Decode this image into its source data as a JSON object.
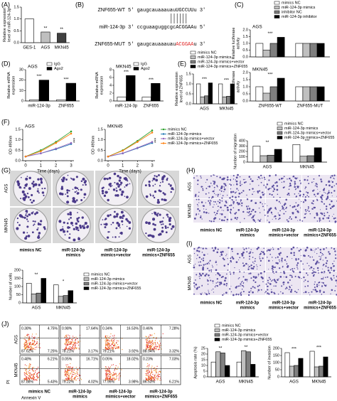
{
  "letters": [
    "(A)",
    "(B)",
    "(C)",
    "(D)",
    "(E)",
    "(F)",
    "(G)",
    "(H)",
    "(I)",
    "(J)"
  ],
  "sequences": [
    {
      "name": "ZNF655-WT",
      "parts": [
        {
          "text": "5' gaugcauaaauau",
          "color": "#000000"
        },
        {
          "text": "UGCCUU",
          "color": "#000000"
        },
        {
          "text": "u 3'",
          "color": "#000000"
        }
      ]
    },
    {
      "name": "miR-124-3p",
      "parts": [
        {
          "text": "3' ccguaaguggcgc",
          "color": "#000000"
        },
        {
          "text": "ACGGAA",
          "color": "#000000"
        },
        {
          "text": "u 5'",
          "color": "#000000"
        }
      ]
    },
    {
      "name": "ZNF655-MUT",
      "parts": [
        {
          "text": "5' gaugcauaaauau",
          "color": "#000000"
        },
        {
          "text": "ACGGAA",
          "color": "#e02020"
        },
        {
          "text": "u 3'",
          "color": "#000000"
        }
      ]
    }
  ],
  "images": [
    {
      "kind": "colony",
      "rows": [
        "AGS",
        "MKN45"
      ],
      "columns": [
        [
          "mimics NC"
        ],
        [
          "miR-124-3p",
          "mimics"
        ],
        [
          "miR-124-3p",
          "mimics+vector"
        ],
        [
          "miR-124-3p",
          "mimics+ZNF655"
        ]
      ]
    },
    {
      "kind": "cells",
      "rows": [
        "AGS",
        "MKN45"
      ],
      "columns": [
        [
          "mimics NC"
        ],
        [
          "miR-124-3p",
          "mimics"
        ],
        [
          "miR-124-3p",
          "mimics+vector"
        ],
        [
          "miR-124-3p",
          "mimics+ZNF655"
        ]
      ]
    },
    {
      "kind": "cells",
      "rows": [
        "AGS",
        "MKN45"
      ],
      "columns": [
        [
          "mimics NC"
        ],
        [
          "miR-124-3p",
          "mimics"
        ],
        [
          "miR-124-3p",
          "mimics+vector"
        ],
        [
          "miR-124-3p",
          "mimics+ZNF655"
        ]
      ]
    }
  ],
  "flow": {
    "rows": [
      "AGS",
      "MKN45"
    ],
    "columns": [
      [
        "mimics NC"
      ],
      [
        "miR-124-3p",
        "mimics"
      ],
      [
        "miR-124-3p",
        "mimics+vector"
      ],
      [
        "miR-124-3p",
        "mimics+ZNF655"
      ]
    ],
    "xlabel": "Annexin V",
    "ylabel": "PI",
    "quadrants": [
      [
        [
          "0.38%",
          "4.75%",
          "87.62%",
          "7.25%"
        ],
        [
          "0.98%",
          "17.64%",
          "78.21%",
          "3.17%"
        ],
        [
          "0.34%",
          "16.53%",
          "79.21%",
          "3.92%"
        ],
        [
          "0.46%",
          "7.28%",
          "88.94%",
          "3.32%"
        ]
      ],
      [
        [
          "0.48%",
          "6.21%",
          "87.88%",
          "5.43%"
        ],
        [
          "0.05%",
          "16.71%",
          "79.22%",
          "4.02%"
        ],
        [
          "0.05%",
          "18.02%",
          "77.95%",
          "3.98%"
        ],
        [
          "0.23%",
          "7.03%",
          "86.53%",
          "6.21%"
        ]
      ]
    ]
  },
  "chart_data": [
    {
      "type": "bar",
      "ylabel": [
        "Relative expression",
        "level of miR-124-3p"
      ],
      "categories": [
        "GES-1",
        "AGS",
        "MKN45"
      ],
      "values": [
        1,
        0.45,
        0.4
      ],
      "colors": [
        "#ffffff",
        "#bfbfbf",
        "#404040"
      ],
      "stars": [
        null,
        "**",
        "**"
      ],
      "ylim": [
        0,
        1.5
      ],
      "yticks": [
        {
          "value": 0,
          "label": "0.0"
        },
        0.5,
        {
          "value": 1,
          "label": "1.0"
        },
        1.5
      ]
    },
    {
      "type": "bar",
      "title": "AGS",
      "ylabel": [
        "Relative luciferase",
        "activity"
      ],
      "legend": true,
      "categories": [
        null,
        null
      ],
      "series": [
        {
          "name": "mimics NC",
          "color": "#ffffff",
          "values": [
            1,
            1
          ]
        },
        {
          "name": "miR-124-3p mimics",
          "color": "#bfbfbf",
          "values": [
            0.5,
            1
          ]
        },
        {
          "name": "inhibitor NC",
          "color": "#7f7f7f",
          "values": [
            1,
            1
          ]
        },
        {
          "name": "miR-124-3p inhibitor",
          "color": "#000000",
          "values": [
            1.45,
            1
          ]
        }
      ],
      "stars": [
        "***",
        null
      ],
      "ylim": [
        0,
        2
      ],
      "yticks": [
        {
          "value": 0,
          "label": "0.0"
        },
        0.5,
        {
          "value": 1,
          "label": "1.0"
        },
        1.5,
        {
          "value": 2,
          "label": "2.0"
        }
      ]
    },
    {
      "type": "bar",
      "title": "MKN45",
      "ylabel": [
        "Relative luciferase",
        "activity"
      ],
      "categories": [
        "ZNF655-WT",
        "ZNF655-MUT"
      ],
      "series": [
        {
          "color": "#ffffff",
          "values": [
            1,
            1
          ]
        },
        {
          "color": "#bfbfbf",
          "values": [
            0.55,
            1
          ]
        },
        {
          "color": "#7f7f7f",
          "values": [
            1,
            1
          ]
        },
        {
          "color": "#000000",
          "values": [
            1.6,
            1
          ]
        }
      ],
      "stars": [
        "***",
        null
      ],
      "ylim": [
        0,
        2
      ],
      "yticks": [
        {
          "value": 0,
          "label": "0.0"
        },
        0.5,
        {
          "value": 1,
          "label": "1.0"
        },
        1.5,
        {
          "value": 2,
          "label": "2.0"
        }
      ]
    },
    {
      "type": "bar",
      "title": "AGS",
      "ylabel": [
        "Relative mRNA",
        "expression"
      ],
      "legend": true,
      "categories": [
        "miR-124-3p",
        "ZNF655"
      ],
      "series": [
        {
          "name": "IgG",
          "color": "#ffffff",
          "values": [
            1,
            1
          ]
        },
        {
          "name": "Ago2",
          "color": "#000000",
          "values": [
            20,
            17
          ]
        }
      ],
      "stars": [
        "***",
        "***"
      ],
      "ylim": [
        0,
        30
      ],
      "yticks": [
        0,
        10,
        20,
        30
      ]
    },
    {
      "type": "bar",
      "title": "MKN45",
      "ylabel": [
        "Relative mRNA",
        "expression"
      ],
      "legend": true,
      "categories": [
        "miR-124-3p",
        "ZNF655"
      ],
      "series": [
        {
          "name": "IgG",
          "color": "#ffffff",
          "values": [
            1,
            1
          ]
        },
        {
          "name": "Ago2",
          "color": "#000000",
          "values": [
            6.5,
            4.5
          ]
        }
      ],
      "stars": [
        "***",
        "***"
      ],
      "ylim": [
        0,
        8
      ],
      "yticks": [
        0,
        2,
        4,
        6,
        8
      ]
    },
    {
      "type": "bar",
      "ylabel": [
        "Relative expression",
        "level of ZNF655"
      ],
      "legend": true,
      "categories": [
        "AGS",
        "MKN45"
      ],
      "series": [
        {
          "name": "mimics NC",
          "color": "#ffffff",
          "values": [
            1,
            1
          ]
        },
        {
          "name": "miR-124-3p mimics",
          "color": "#bfbfbf",
          "values": [
            0.35,
            0.35
          ]
        },
        {
          "name": "miR-124-3p mimics+vector",
          "color": "#7f7f7f",
          "values": [
            0.4,
            0.38
          ]
        },
        {
          "name": "miR-124-3p mimics+ZNF655",
          "color": "#000000",
          "values": [
            1.05,
            1
          ]
        }
      ],
      "stars": [
        "***",
        "***"
      ],
      "ylim": [
        0,
        1.5
      ],
      "yticks": [
        {
          "value": 0,
          "label": "0.0"
        },
        0.5,
        {
          "value": 1,
          "label": "1.0"
        },
        1.5
      ]
    },
    {
      "type": "line",
      "title": "AGS",
      "ylabel": [
        "OD 490nm"
      ],
      "xlabel": "Time (days)",
      "x": [
        0,
        1,
        2,
        3
      ],
      "xlim": [
        0,
        3
      ],
      "xticks": [
        0,
        1,
        2,
        3
      ],
      "series": [
        {
          "name": "mimics NC",
          "color": "#2ca02c",
          "values": [
            0.2,
            0.5,
            0.9,
            1.4
          ]
        },
        {
          "name": "miR-124-3p mimics",
          "color": "#1f77b4",
          "values": [
            0.2,
            0.35,
            0.55,
            0.8
          ]
        },
        {
          "name": "miR-124-3p mimics+vector",
          "color": "#9467bd",
          "values": [
            0.2,
            0.35,
            0.58,
            0.85
          ]
        },
        {
          "name": "miR-124-3p mimics+ZNF655",
          "color": "#ff7f0e",
          "values": [
            0.2,
            0.45,
            0.85,
            1.3
          ]
        }
      ],
      "stars": [
        "***"
      ],
      "ylim": [
        0,
        1.5
      ],
      "yticks": [
        {
          "value": 0,
          "label": "0.0"
        },
        0.5,
        {
          "value": 1,
          "label": "1.0"
        },
        1.5
      ]
    },
    {
      "type": "line",
      "title": "MKN45",
      "ylabel": [
        "OD 490nm"
      ],
      "xlabel": "Time (days)",
      "legend": true,
      "x": [
        0,
        1,
        2,
        3
      ],
      "xlim": [
        0,
        3
      ],
      "xticks": [
        0,
        1,
        2,
        3
      ],
      "series": [
        {
          "name": "mimics NC",
          "color": "#2ca02c",
          "values": [
            0.2,
            0.5,
            0.95,
            1.45
          ]
        },
        {
          "name": "miR-124-3p mimics",
          "color": "#1f77b4",
          "values": [
            0.2,
            0.35,
            0.6,
            0.85
          ]
        },
        {
          "name": "miR-124-3p mimics+vector",
          "color": "#9467bd",
          "values": [
            0.2,
            0.36,
            0.62,
            0.9
          ]
        },
        {
          "name": "miR-124-3p mimics+ZNF655",
          "color": "#ff7f0e",
          "values": [
            0.2,
            0.48,
            0.9,
            1.35
          ]
        }
      ],
      "stars": [
        "***"
      ],
      "ylim": [
        0,
        1.5
      ],
      "yticks": [
        {
          "value": 0,
          "label": "0.0"
        },
        0.5,
        {
          "value": 1,
          "label": "1.0"
        },
        1.5
      ]
    },
    {
      "type": "bar",
      "ylabel": [
        "Number of migration"
      ],
      "legend": true,
      "categories": [
        "AGS",
        "MKN45"
      ],
      "series": [
        {
          "name": "mimics NC",
          "color": "#ffffff",
          "values": [
            300,
            330
          ]
        },
        {
          "name": "miR-124-3p mimics",
          "color": "#bfbfbf",
          "values": [
            120,
            110
          ]
        },
        {
          "name": "miR-124-3p mimics+vector",
          "color": "#7f7f7f",
          "values": [
            130,
            120
          ]
        },
        {
          "name": "miR-124-3p mimics+ZNF655",
          "color": "#000000",
          "values": [
            240,
            270
          ]
        }
      ],
      "stars": [
        "**",
        "***"
      ],
      "ylim": [
        0,
        400
      ],
      "yticks": [
        0,
        100,
        200,
        300,
        400
      ]
    },
    {
      "type": "bar",
      "ylabel": [
        "Number of cells"
      ],
      "legend": true,
      "categories": [
        "AGS",
        "MKN45"
      ],
      "series": [
        {
          "name": "mimics NC",
          "color": "#ffffff",
          "values": [
            120,
            110
          ]
        },
        {
          "name": "miR-124-3p mimics",
          "color": "#bfbfbf",
          "values": [
            55,
            40
          ]
        },
        {
          "name": "miR-124-3p mimics+vector",
          "color": "#7f7f7f",
          "values": [
            60,
            45
          ]
        },
        {
          "name": "miR-124-3p mimics+ZNF655",
          "color": "#000000",
          "values": [
            150,
            75
          ]
        }
      ],
      "stars": [
        "**",
        "*"
      ],
      "ylim": [
        0,
        200
      ],
      "yticks": [
        0,
        50,
        100,
        150,
        200
      ]
    },
    {
      "type": "bar",
      "ylabel": [
        "Apoptosis rate (%)"
      ],
      "legend": true,
      "categories": [
        "AGS",
        "MKN45"
      ],
      "series": [
        {
          "name": "mimics NC",
          "color": "#ffffff",
          "values": [
            13,
            13
          ]
        },
        {
          "name": "miR-124-3p mimics",
          "color": "#bfbfbf",
          "values": [
            22,
            23
          ]
        },
        {
          "name": "miR-124-3p mimics+vector",
          "color": "#7f7f7f",
          "values": [
            21,
            22
          ]
        },
        {
          "name": "miR-124-3p mimics+ZNF655",
          "color": "#000000",
          "values": [
            10,
            11
          ]
        }
      ],
      "stars": [
        "**",
        "**"
      ],
      "ylim": [
        0,
        25
      ],
      "yticks": [
        0,
        5,
        10,
        15,
        20,
        25
      ]
    },
    {
      "type": "bar",
      "ylabel": [
        "Number of invasion"
      ],
      "categories": [
        "AGS",
        "MKN45"
      ],
      "series": [
        {
          "color": "#ffffff",
          "values": [
            170,
            180
          ]
        },
        {
          "color": "#bfbfbf",
          "values": [
            75,
            70
          ]
        },
        {
          "color": "#7f7f7f",
          "values": [
            80,
            75
          ]
        },
        {
          "color": "#000000",
          "values": [
            130,
            140
          ]
        }
      ],
      "stars": [
        "***",
        "***"
      ],
      "ylim": [
        0,
        200
      ],
      "yticks": [
        0,
        50,
        100,
        150,
        200
      ]
    }
  ]
}
